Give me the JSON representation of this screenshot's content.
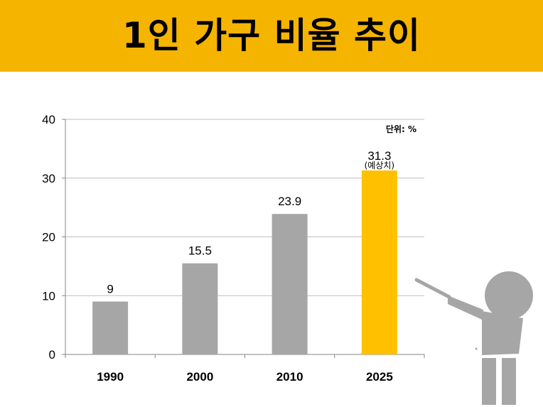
{
  "header": {
    "title": "1인 가구 비율 추이"
  },
  "chart_data": {
    "type": "bar",
    "categories": [
      "1990",
      "2000",
      "2010",
      "2025"
    ],
    "values": [
      9,
      15.5,
      23.9,
      31.3
    ],
    "data_labels": [
      "9",
      "15.5",
      "23.9",
      "31.3"
    ],
    "annotations": [
      {
        "category": "2025",
        "text": "(예상치)"
      }
    ],
    "unit_label": "단위: %",
    "ylim": [
      0,
      40
    ],
    "yticks": [
      0,
      10,
      20,
      30,
      40
    ],
    "grid": true,
    "colors": {
      "default": "#a6a6a6",
      "highlight": "#ffc000",
      "highlight_category": "2025"
    }
  },
  "presenter": {
    "icon": "presenter-with-pointer-icon",
    "color": "#a6a6a6"
  }
}
